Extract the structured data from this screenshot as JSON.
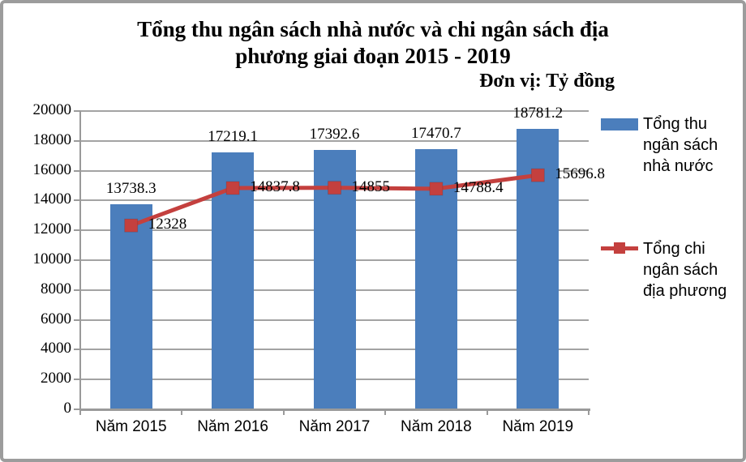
{
  "title": {
    "line1": "Tổng thu ngân sách nhà nước và chi ngân sách địa",
    "line2": "phương giai đoạn 2015 - 2019",
    "unit": "Đơn vị: Tỷ đồng"
  },
  "chart_data": {
    "type": "bar+line",
    "categories": [
      "Năm 2015",
      "Năm 2016",
      "Năm 2017",
      "Năm 2018",
      "Năm 2019"
    ],
    "series": [
      {
        "name": "Tổng thu ngân sách nhà nước",
        "type": "bar",
        "color": "#4b7ebc",
        "values": [
          13738.3,
          17219.1,
          17392.6,
          17470.7,
          18781.2
        ]
      },
      {
        "name": "Tổng chi ngân sách địa phương",
        "type": "line",
        "color": "#c4403e",
        "values": [
          12328,
          14837.8,
          14855,
          14788.4,
          15696.8
        ]
      }
    ],
    "ylim": [
      0,
      20000
    ],
    "ytick_step": 2000,
    "grid": true,
    "legend_position": "right",
    "data_labels": true
  },
  "colors": {
    "bar_blue": "#4b7ebc",
    "line_red": "#c4403e",
    "grid_gray": "#a3a3a3",
    "axis_gray": "#9a9a9a",
    "border_gray": "#9c9c9c",
    "background": "#ffffff",
    "text": "#000000"
  }
}
